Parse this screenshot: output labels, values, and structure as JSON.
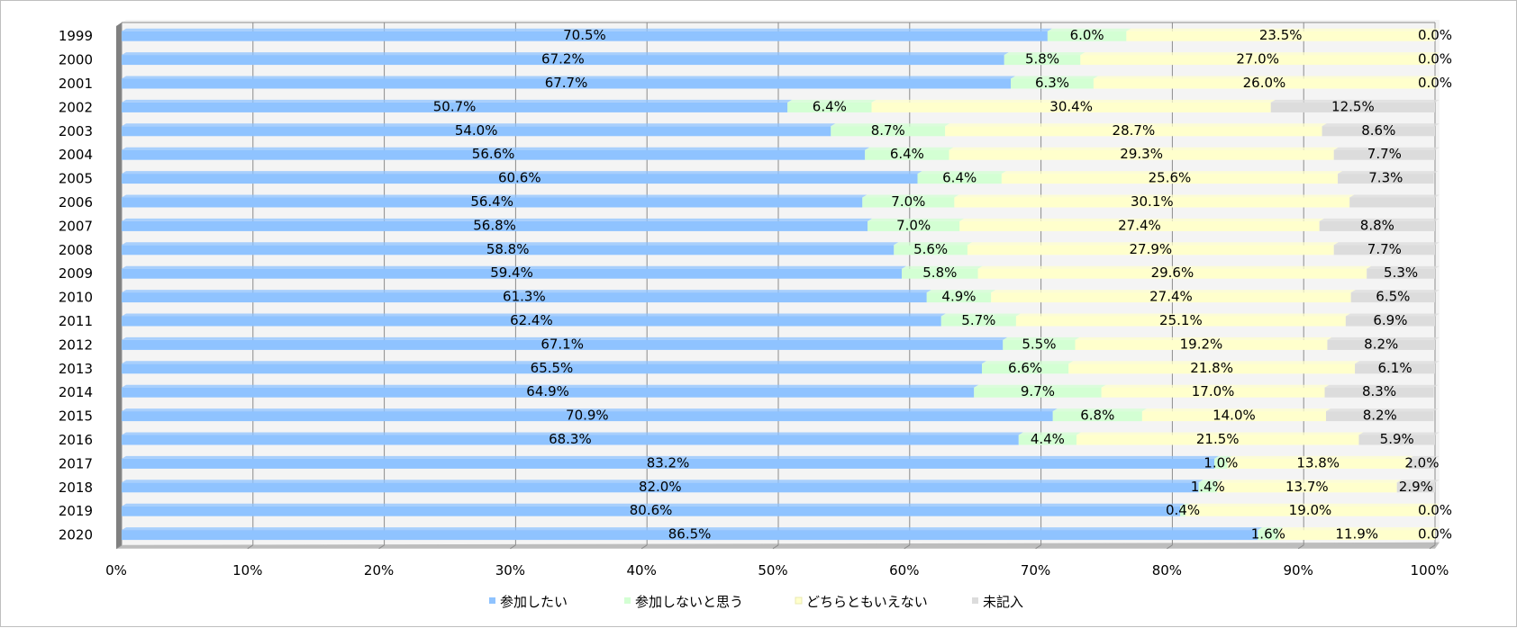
{
  "chart_data": {
    "type": "bar",
    "orientation": "horizontal",
    "stacked": "percent",
    "categories": [
      "1999",
      "2000",
      "2001",
      "2002",
      "2003",
      "2004",
      "2005",
      "2006",
      "2007",
      "2008",
      "2009",
      "2010",
      "2011",
      "2012",
      "2013",
      "2014",
      "2015",
      "2016",
      "2017",
      "2018",
      "2019",
      "2020"
    ],
    "series": [
      {
        "name": "参加したい",
        "color": "#8fc3ff",
        "values": [
          70.5,
          67.2,
          67.7,
          50.7,
          54.0,
          56.6,
          60.6,
          56.4,
          56.8,
          58.8,
          59.4,
          61.3,
          62.4,
          67.1,
          65.5,
          64.9,
          70.9,
          68.3,
          83.2,
          82.0,
          80.6,
          86.5
        ]
      },
      {
        "name": "参加しないと思う",
        "color": "#d3ffd3",
        "values": [
          6.0,
          5.8,
          6.3,
          6.4,
          8.7,
          6.4,
          6.4,
          7.0,
          7.0,
          5.6,
          5.8,
          4.9,
          5.7,
          5.5,
          6.6,
          9.7,
          6.8,
          4.4,
          1.0,
          1.4,
          0.4,
          1.6
        ]
      },
      {
        "name": "どちらともいえない",
        "color": "#ffffcc",
        "values": [
          23.5,
          27.0,
          26.0,
          30.4,
          28.7,
          29.3,
          25.6,
          30.1,
          27.4,
          27.9,
          29.6,
          27.4,
          25.1,
          19.2,
          21.8,
          17.0,
          14.0,
          21.5,
          13.8,
          13.7,
          19.0,
          11.9
        ]
      },
      {
        "name": "未記入",
        "color": "#dcdcdc",
        "values": [
          0.0,
          0.0,
          0.0,
          12.5,
          8.6,
          7.7,
          7.3,
          null,
          8.8,
          7.7,
          5.3,
          6.5,
          6.9,
          8.2,
          6.1,
          8.3,
          8.2,
          5.9,
          2.0,
          2.9,
          0.0,
          0.0
        ]
      }
    ],
    "x_ticks": [
      "0%",
      "10%",
      "20%",
      "30%",
      "40%",
      "50%",
      "60%",
      "70%",
      "80%",
      "90%",
      "100%"
    ],
    "xlim": [
      0,
      100
    ],
    "grid": true,
    "legend_position": "bottom"
  }
}
